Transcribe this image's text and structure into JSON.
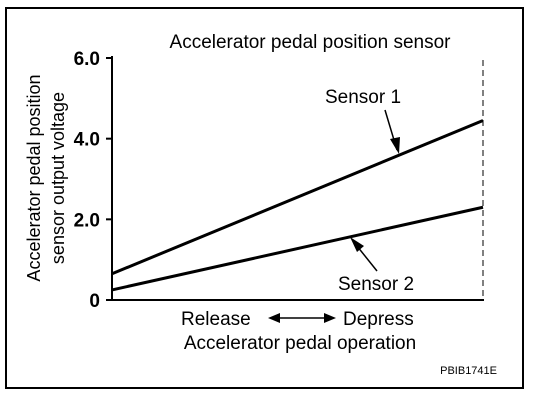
{
  "chart_data": {
    "type": "line",
    "title": "Accelerator pedal position sensor",
    "ylabel_lines": [
      "Accelerator pedal position",
      "sensor output voltage"
    ],
    "xlabel": "Accelerator pedal operation",
    "x_tick_left": "Release",
    "x_tick_right": "Depress",
    "x": [
      0,
      1
    ],
    "ylim": [
      0,
      6
    ],
    "yticks": [
      0,
      2,
      4,
      6
    ],
    "ytick_labels": [
      "0",
      "2.0",
      "4.0",
      "6.0"
    ],
    "grid": false,
    "series": [
      {
        "name": "Sensor 1",
        "values": [
          0.65,
          4.45
        ]
      },
      {
        "name": "Sensor 2",
        "values": [
          0.25,
          2.3
        ]
      }
    ],
    "annotations": [
      "Sensor 1",
      "Sensor 2"
    ]
  },
  "figure_code": "PBIB1741E"
}
